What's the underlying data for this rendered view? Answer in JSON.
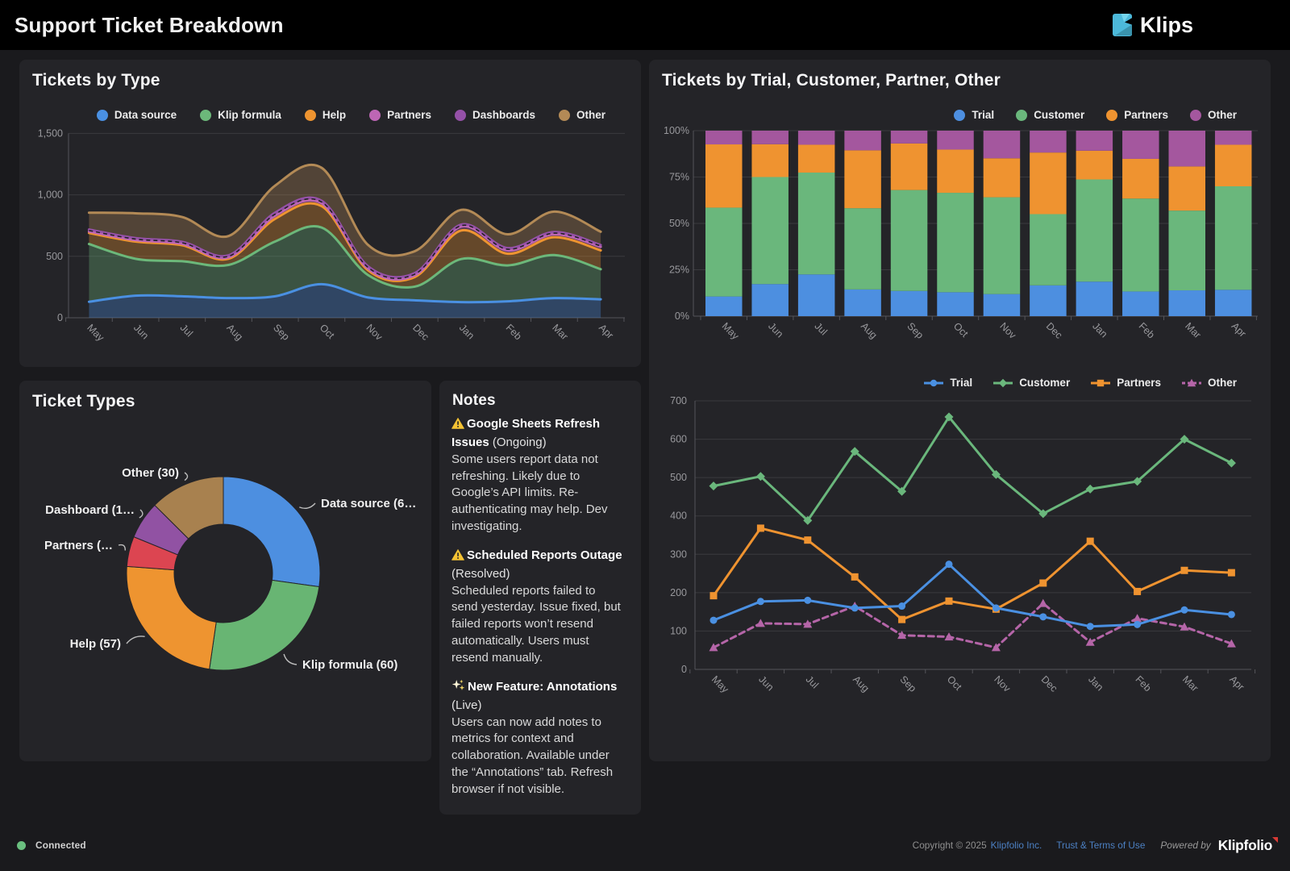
{
  "header": {
    "title": "Support Ticket Breakdown",
    "brand": "Klips"
  },
  "footer": {
    "status": "Connected",
    "copyright": "Copyright © 2025",
    "company_link": "Klipfolio Inc.",
    "terms_link": "Trust & Terms of Use",
    "powered_by": "Powered by",
    "brand": "Klipfolio"
  },
  "colors": {
    "page_bg": "#1a1a1d",
    "panel_bg": "#242428",
    "header_bg": "#000000",
    "grid": "#3a3a3e",
    "axis": "#55555a",
    "axis_text": "#98989c",
    "logo_cyan": "#4cb9da",
    "logo_light": "#74d4ec",
    "logo_dark": "#3a93ad",
    "link_blue": "#4c80c3",
    "status_green": "#6abf7f",
    "warning_yellow": "#f5c333",
    "klipfolio_red": "#d93a35"
  },
  "notes": {
    "title": "Notes",
    "items": [
      {
        "icon": "warning",
        "title": "Google Sheets Refresh Issues",
        "status": "(Ongoing)",
        "body": "Some users report data not refreshing. Likely due to Google’s API limits. Re-authenticating may help. Dev investigating."
      },
      {
        "icon": "warning",
        "title": "Scheduled Reports Outage",
        "status": "(Resolved)",
        "body": "Scheduled reports failed to send yesterday. Issue fixed, but failed reports won’t resend automatically. Users must resend manually."
      },
      {
        "icon": "sparkles",
        "title": "New Feature: Annotations",
        "status": "(Live)",
        "body": "Users can now add notes to metrics for context and collaboration. Available under the “Annotations” tab. Refresh browser if not visible."
      }
    ]
  },
  "chart_data": [
    {
      "id": "tickets-by-type",
      "type": "area",
      "title": "Tickets by Type",
      "stacking": "normal",
      "smooth": true,
      "grid": true,
      "legend_position": "top",
      "categories": [
        "May",
        "Jun",
        "Jul",
        "Aug",
        "Sep",
        "Oct",
        "Nov",
        "Dec",
        "Jan",
        "Feb",
        "Mar",
        "Apr"
      ],
      "ylim": [
        0,
        1500
      ],
      "yticks": [
        0,
        500,
        1000,
        1500
      ],
      "ytick_labels": [
        "0",
        "500",
        "1,000",
        "1,500"
      ],
      "series": [
        {
          "name": "Data source",
          "color": "#4a90e2",
          "values": [
            130,
            180,
            175,
            160,
            175,
            273,
            165,
            142,
            127,
            134,
            160,
            150
          ]
        },
        {
          "name": "Klip formula",
          "color": "#6cb87a",
          "values": [
            470,
            300,
            285,
            270,
            445,
            461,
            182,
            111,
            351,
            292,
            350,
            245
          ]
        },
        {
          "name": "Help",
          "color": "#ee9430",
          "values": [
            90,
            140,
            130,
            50,
            185,
            174,
            39,
            78,
            232,
            95,
            145,
            153
          ]
        },
        {
          "name": "Partners",
          "color": "#bd66b4",
          "values": [
            12,
            12,
            12,
            12,
            25,
            24,
            14,
            14,
            32,
            27,
            24,
            29
          ]
        },
        {
          "name": "Dashboards",
          "color": "#9551a8",
          "values": [
            16,
            16,
            16,
            16,
            25,
            20,
            18,
            18,
            16,
            19,
            19,
            15
          ]
        },
        {
          "name": "Other",
          "color": "#b38a56",
          "values": [
            137,
            202,
            202,
            157,
            220,
            268,
            174,
            178,
            120,
            112,
            166,
            108
          ]
        }
      ]
    },
    {
      "id": "tickets-by-segment-percent",
      "type": "bar",
      "title": "Tickets by Trial, Customer, Partner, Other",
      "stacking": "percent",
      "grid": true,
      "legend_position": "top",
      "categories": [
        "May",
        "Jun",
        "Jul",
        "Aug",
        "Sep",
        "Oct",
        "Nov",
        "Dec",
        "Jan",
        "Feb",
        "Mar",
        "Apr"
      ],
      "ylim": [
        0,
        100
      ],
      "yticks": [
        0,
        25,
        50,
        75,
        100
      ],
      "ytick_labels": [
        "0%",
        "25%",
        "50%",
        "75%",
        "100%"
      ],
      "series": [
        {
          "name": "Trial",
          "color": "#4d8fe0",
          "values": [
            10.6,
            17.3,
            22.5,
            14.4,
            13.6,
            12.9,
            11.9,
            16.6,
            18.6,
            13.3,
            13.9,
            14.2
          ]
        },
        {
          "name": "Customer",
          "color": "#6ab77c",
          "values": [
            47.9,
            57.7,
            54.9,
            43.8,
            54.4,
            53.6,
            52.2,
            38.4,
            55.1,
            50.1,
            43.0,
            55.8
          ]
        },
        {
          "name": "Partners",
          "color": "#ef9330",
          "values": [
            34.1,
            17.7,
            15.0,
            31.2,
            25.1,
            23.3,
            21.0,
            33.2,
            15.5,
            21.4,
            23.8,
            22.4
          ]
        },
        {
          "name": "Other",
          "color": "#a4579e",
          "values": [
            7.4,
            7.3,
            7.6,
            10.6,
            6.9,
            10.2,
            14.9,
            11.8,
            10.8,
            15.2,
            19.3,
            7.6
          ]
        }
      ]
    },
    {
      "id": "ticket-types-donut",
      "type": "pie",
      "title": "Ticket Types",
      "donut": true,
      "labels": [
        "Data source (6…",
        "Klip formula (60)",
        "Help (57)",
        "Partners (…",
        "Dashboard (1…",
        "Other (30)"
      ],
      "values": [
        65,
        60,
        57,
        12,
        15,
        30
      ],
      "colors": [
        "#4d8fe0",
        "#68b573",
        "#ee9430",
        "#dc4551",
        "#9152a3",
        "#a8814f"
      ]
    },
    {
      "id": "tickets-by-segment-lines",
      "type": "line",
      "grid": true,
      "legend_position": "top",
      "categories": [
        "May",
        "Jun",
        "Jul",
        "Aug",
        "Sep",
        "Oct",
        "Nov",
        "Dec",
        "Jan",
        "Feb",
        "Mar",
        "Apr"
      ],
      "ylim": [
        0,
        700
      ],
      "yticks": [
        0,
        100,
        200,
        300,
        400,
        500,
        600,
        700
      ],
      "ytick_labels": [
        "0",
        "100",
        "200",
        "300",
        "400",
        "500",
        "600",
        "700"
      ],
      "series": [
        {
          "name": "Trial",
          "color": "#4a90e2",
          "marker": "circle",
          "values": [
            128,
            177,
            180,
            160,
            165,
            274,
            160,
            137,
            112,
            117,
            155,
            143
          ]
        },
        {
          "name": "Customer",
          "color": "#6ab77c",
          "marker": "diamond",
          "values": [
            478,
            503,
            388,
            568,
            464,
            658,
            508,
            406,
            470,
            490,
            600,
            538
          ]
        },
        {
          "name": "Partners",
          "color": "#ef9330",
          "marker": "square",
          "values": [
            192,
            368,
            337,
            241,
            130,
            178,
            157,
            225,
            334,
            203,
            258,
            252
          ]
        },
        {
          "name": "Other",
          "color": "#b565a8",
          "marker": "triangle",
          "dashed": true,
          "values": [
            57,
            120,
            118,
            165,
            89,
            85,
            57,
            172,
            71,
            133,
            111,
            67
          ]
        }
      ]
    }
  ]
}
